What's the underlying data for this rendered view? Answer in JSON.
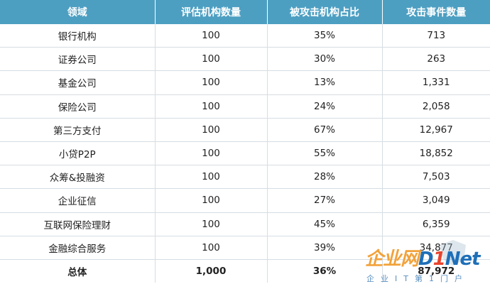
{
  "table": {
    "headers": [
      "领域",
      "评估机构数量",
      "被攻击机构占比",
      "攻击事件数量"
    ],
    "rows": [
      [
        "银行机构",
        "100",
        "35%",
        "713"
      ],
      [
        "证券公司",
        "100",
        "30%",
        "263"
      ],
      [
        "基金公司",
        "100",
        "13%",
        "1,331"
      ],
      [
        "保险公司",
        "100",
        "24%",
        "2,058"
      ],
      [
        "第三方支付",
        "100",
        "67%",
        "12,967"
      ],
      [
        "小贷P2P",
        "100",
        "55%",
        "18,852"
      ],
      [
        "众筹&投融资",
        "100",
        "28%",
        "7,503"
      ],
      [
        "企业征信",
        "100",
        "27%",
        "3,049"
      ],
      [
        "互联网保险理财",
        "100",
        "45%",
        "6,359"
      ],
      [
        "金融综合服务",
        "100",
        "39%",
        "34,877"
      ]
    ],
    "total": [
      "总体",
      "1,000",
      "36%",
      "87,972"
    ]
  },
  "watermark": {
    "logo_cn": "企业网",
    "logo_d": "D",
    "logo_i": "1",
    "logo_net": "Net",
    "subtitle": "企业IT第1门户",
    "colors": {
      "orange": "#f2a23a",
      "blue": "#1e6fb8",
      "red": "#e8432c"
    }
  },
  "colors": {
    "header_bg": "#4d9fc2",
    "grid": "#d6dde3"
  }
}
